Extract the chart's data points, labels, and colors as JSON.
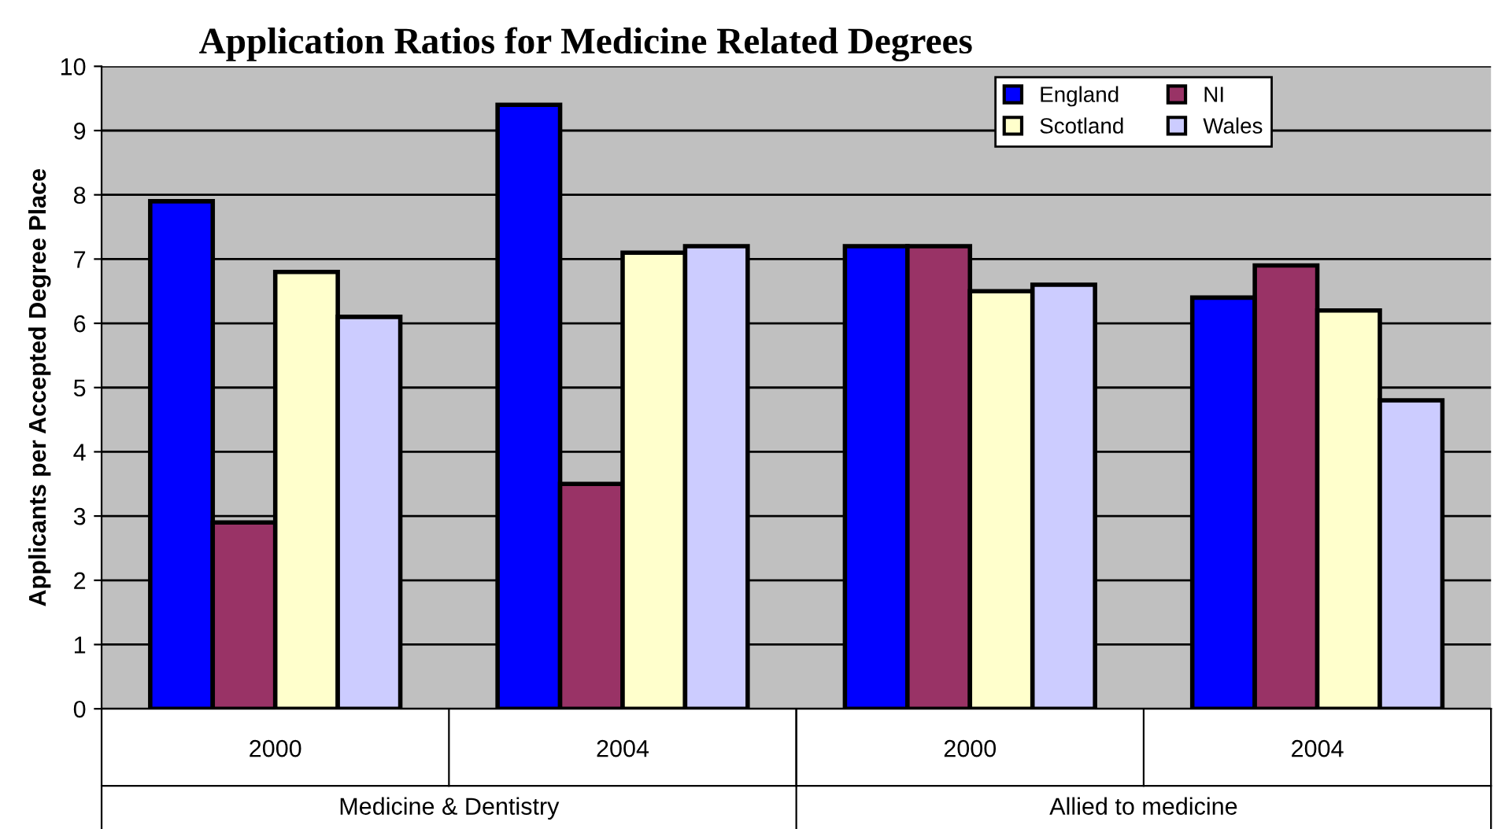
{
  "chart_data": {
    "type": "bar",
    "title": "Application Ratios for Medicine Related Degrees",
    "ylabel": "Applicants per Accepted Degree Place",
    "categories": [
      "2000",
      "2004",
      "2000",
      "2004"
    ],
    "annotations": [
      "Medicine & Dentistry",
      "Allied to medicine"
    ],
    "series": [
      {
        "name": "England",
        "color": "#0000ff",
        "values": [
          7.9,
          9.4,
          7.2,
          6.4
        ]
      },
      {
        "name": "NI",
        "color": "#993366",
        "values": [
          2.9,
          3.5,
          7.2,
          6.9
        ]
      },
      {
        "name": "Scotland",
        "color": "#ffffcc",
        "values": [
          6.8,
          7.1,
          6.5,
          6.2
        ]
      },
      {
        "name": "Wales",
        "color": "#ccccff",
        "values": [
          6.1,
          7.2,
          6.6,
          4.8
        ]
      }
    ],
    "ylim": [
      0,
      10
    ],
    "yticks": [
      0,
      1,
      2,
      3,
      4,
      5,
      6,
      7,
      8,
      9,
      10
    ],
    "grid": "y",
    "legend": "top right"
  }
}
